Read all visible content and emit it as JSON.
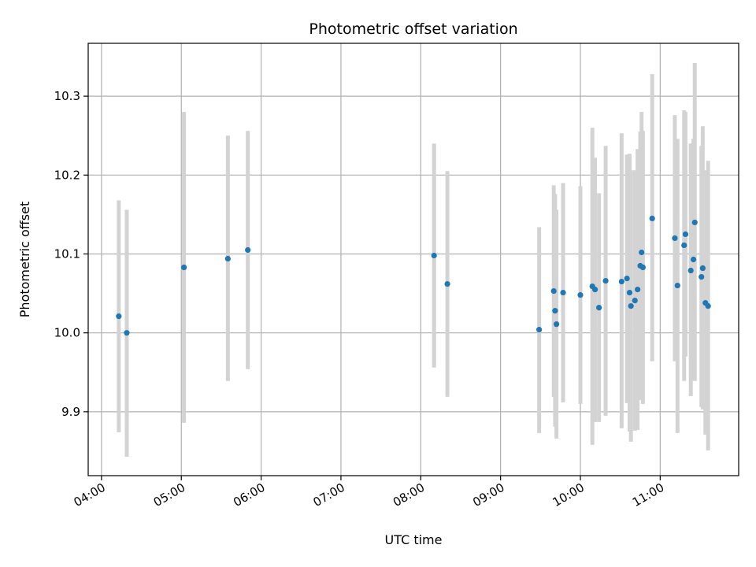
{
  "chart_data": {
    "type": "scatter",
    "title": "Photometric offset variation",
    "xlabel": "UTC time",
    "ylabel": "Photometric offset",
    "x_axis_type": "time",
    "xlim": [
      "03:50",
      "11:59"
    ],
    "ylim": [
      9.819,
      10.367
    ],
    "x_ticks": [
      "04:00",
      "05:00",
      "06:00",
      "07:00",
      "08:00",
      "09:00",
      "10:00",
      "11:00"
    ],
    "y_ticks": [
      9.9,
      10.0,
      10.1,
      10.2,
      10.3
    ],
    "y_tick_labels": [
      "9.9",
      "10.0",
      "10.1",
      "10.2",
      "10.3"
    ],
    "grid": true,
    "point_color": "#1f77b4",
    "errorbar_color": "#d3d3d3",
    "points": [
      {
        "x": "04:13",
        "y": 10.021,
        "lo": 9.874,
        "hi": 10.168
      },
      {
        "x": "04:19",
        "y": 10.0,
        "lo": 9.843,
        "hi": 10.156
      },
      {
        "x": "05:02",
        "y": 10.083,
        "lo": 9.886,
        "hi": 10.28
      },
      {
        "x": "05:35",
        "y": 10.094,
        "lo": 9.939,
        "hi": 10.25
      },
      {
        "x": "05:50",
        "y": 10.105,
        "lo": 9.954,
        "hi": 10.256
      },
      {
        "x": "08:10",
        "y": 10.098,
        "lo": 9.956,
        "hi": 10.24
      },
      {
        "x": "08:20",
        "y": 10.062,
        "lo": 9.919,
        "hi": 10.205
      },
      {
        "x": "09:29",
        "y": 10.004,
        "lo": 9.873,
        "hi": 10.134
      },
      {
        "x": "09:40",
        "y": 10.053,
        "lo": 9.919,
        "hi": 10.187
      },
      {
        "x": "09:41",
        "y": 10.028,
        "lo": 9.881,
        "hi": 10.176
      },
      {
        "x": "09:42",
        "y": 10.011,
        "lo": 9.866,
        "hi": 10.156
      },
      {
        "x": "09:47",
        "y": 10.051,
        "lo": 9.912,
        "hi": 10.19
      },
      {
        "x": "10:00",
        "y": 10.048,
        "lo": 9.91,
        "hi": 10.186
      },
      {
        "x": "10:09",
        "y": 10.059,
        "lo": 9.858,
        "hi": 10.26
      },
      {
        "x": "10:11",
        "y": 10.055,
        "lo": 9.887,
        "hi": 10.222
      },
      {
        "x": "10:14",
        "y": 10.032,
        "lo": 9.887,
        "hi": 10.177
      },
      {
        "x": "10:19",
        "y": 10.066,
        "lo": 9.895,
        "hi": 10.237
      },
      {
        "x": "10:31",
        "y": 10.065,
        "lo": 9.879,
        "hi": 10.253
      },
      {
        "x": "10:35",
        "y": 10.069,
        "lo": 9.911,
        "hi": 10.226
      },
      {
        "x": "10:37",
        "y": 10.051,
        "lo": 9.875,
        "hi": 10.227
      },
      {
        "x": "10:38",
        "y": 10.034,
        "lo": 9.862,
        "hi": 10.206
      },
      {
        "x": "10:41",
        "y": 10.041,
        "lo": 9.876,
        "hi": 10.206
      },
      {
        "x": "10:43",
        "y": 10.055,
        "lo": 9.877,
        "hi": 10.233
      },
      {
        "x": "10:45",
        "y": 10.085,
        "lo": 9.915,
        "hi": 10.255
      },
      {
        "x": "10:46",
        "y": 10.102,
        "lo": 9.92,
        "hi": 10.28
      },
      {
        "x": "10:47",
        "y": 10.083,
        "lo": 9.91,
        "hi": 10.256
      },
      {
        "x": "10:54",
        "y": 10.145,
        "lo": 9.964,
        "hi": 10.328
      },
      {
        "x": "11:11",
        "y": 10.12,
        "lo": 9.964,
        "hi": 10.276
      },
      {
        "x": "11:13",
        "y": 10.06,
        "lo": 9.873,
        "hi": 10.246
      },
      {
        "x": "11:18",
        "y": 10.111,
        "lo": 9.939,
        "hi": 10.282
      },
      {
        "x": "11:19",
        "y": 10.125,
        "lo": 9.97,
        "hi": 10.28
      },
      {
        "x": "11:23",
        "y": 10.079,
        "lo": 9.92,
        "hi": 10.24
      },
      {
        "x": "11:25",
        "y": 10.093,
        "lo": 9.94,
        "hi": 10.246
      },
      {
        "x": "11:26",
        "y": 10.14,
        "lo": 9.939,
        "hi": 10.342
      },
      {
        "x": "11:31",
        "y": 10.071,
        "lo": 9.906,
        "hi": 10.237
      },
      {
        "x": "11:32",
        "y": 10.082,
        "lo": 9.903,
        "hi": 10.262
      },
      {
        "x": "11:34",
        "y": 10.038,
        "lo": 9.871,
        "hi": 10.206
      },
      {
        "x": "11:36",
        "y": 10.034,
        "lo": 9.851,
        "hi": 10.218
      }
    ]
  }
}
